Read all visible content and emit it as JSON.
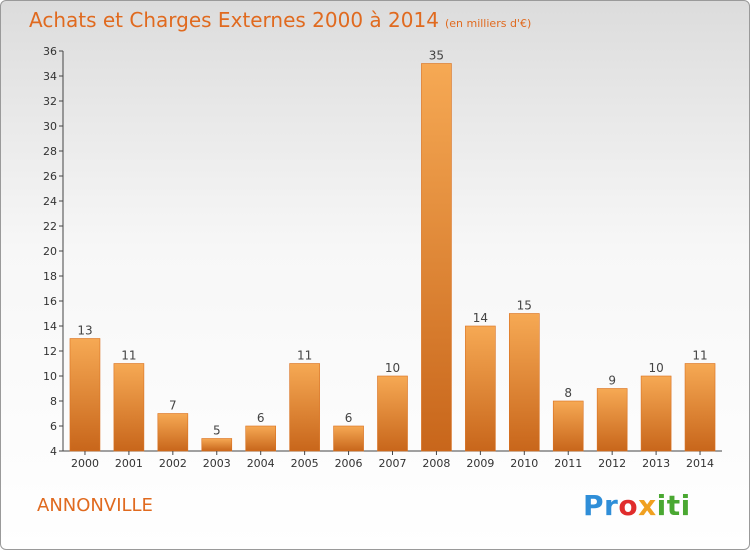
{
  "header": {
    "title": "Achats et Charges Externes 2000 à 2014",
    "subtitle": "(en milliers d'€)"
  },
  "place": "ANNONVILLE",
  "logo": {
    "parts": [
      "Pr",
      "o",
      "x",
      "iti"
    ]
  },
  "colors": {
    "accent": "#e06a1f",
    "bar_light": "#f6a954",
    "bar_dark": "#c8661b"
  },
  "chart_data": {
    "type": "bar",
    "title": "Achats et Charges Externes 2000 à 2014",
    "subtitle": "(en milliers d'€)",
    "categories": [
      "2000",
      "2001",
      "2002",
      "2003",
      "2004",
      "2005",
      "2006",
      "2007",
      "2008",
      "2009",
      "2010",
      "2011",
      "2012",
      "2013",
      "2014"
    ],
    "values": [
      13,
      11,
      7,
      5,
      6,
      11,
      6,
      10,
      35,
      14,
      15,
      8,
      9,
      10,
      11
    ],
    "ylim": [
      4,
      36
    ],
    "yticks": [
      4,
      6,
      8,
      10,
      12,
      14,
      16,
      18,
      20,
      22,
      24,
      26,
      28,
      30,
      32,
      34,
      36
    ],
    "grid": false,
    "legend": "none"
  }
}
